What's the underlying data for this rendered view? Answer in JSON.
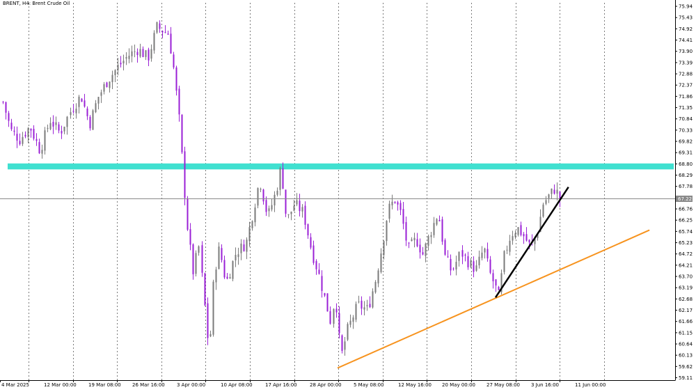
{
  "symbol_title": "BRENT, H4:  Brent Crude Oil",
  "colors": {
    "background": "#ffffff",
    "axis": "#000000",
    "grid": "#7a7a7a",
    "bull": "#7a7a7a",
    "bear": "#9a1fd6",
    "resistance_zone": "#40e0d0",
    "support_line": "#f7931e",
    "short_trend_line": "#000000",
    "price_line": "#888888",
    "price_tag_bg": "#888888",
    "price_tag_text": "#ffffff"
  },
  "chart_data": {
    "type": "candlestick",
    "title": "BRENT, H4:  Brent Crude Oil",
    "timeframe": "H4",
    "ylim": [
      59.0,
      76.1
    ],
    "y_ticks": [
      "75.94",
      "75.43",
      "74.92",
      "74.41",
      "73.90",
      "73.39",
      "72.88",
      "72.37",
      "71.86",
      "71.35",
      "70.84",
      "70.33",
      "69.82",
      "69.31",
      "68.80",
      "68.29",
      "67.78",
      "67.27",
      "66.76",
      "66.25",
      "65.74",
      "65.23",
      "64.72",
      "64.21",
      "63.70",
      "63.19",
      "62.68",
      "62.17",
      "61.66",
      "61.15",
      "60.64",
      "60.13",
      "59.62",
      "59.11"
    ],
    "x_ticks": [
      "4 Mar 2025",
      "12 Mar 00:00",
      "19 Mar 08:00",
      "26 Mar 16:00",
      "3 Apr 00:00",
      "10 Apr 08:00",
      "17 Apr 16:00",
      "28 Apr 00:00",
      "5 May 08:00",
      "12 May 16:00",
      "20 May 00:00",
      "27 May 08:00",
      "3 Jun 16:00",
      "11 Jun 00:00"
    ],
    "current_price": "67.22",
    "resistance_zone": {
      "low": 68.55,
      "high": 68.82
    },
    "support_line": {
      "from": {
        "bar_index": 0.5,
        "price": 59.55
      },
      "to": {
        "bar_index": 0.962,
        "price": 65.8
      }
    },
    "short_trend_line": {
      "from": {
        "bar_index": 0.734,
        "price": 62.75
      },
      "to": {
        "bar_index": 0.842,
        "price": 67.75
      }
    },
    "close_path": [
      [
        0.0,
        71.6
      ],
      [
        0.012,
        70.3
      ],
      [
        0.025,
        69.9
      ],
      [
        0.04,
        70.5
      ],
      [
        0.055,
        69.4
      ],
      [
        0.07,
        70.8
      ],
      [
        0.085,
        70.2
      ],
      [
        0.1,
        71.2
      ],
      [
        0.115,
        71.9
      ],
      [
        0.128,
        70.6
      ],
      [
        0.14,
        71.8
      ],
      [
        0.155,
        72.6
      ],
      [
        0.17,
        73.2
      ],
      [
        0.185,
        73.7
      ],
      [
        0.2,
        74.0
      ],
      [
        0.215,
        73.6
      ],
      [
        0.228,
        75.0
      ],
      [
        0.245,
        74.7
      ],
      [
        0.252,
        73.4
      ],
      [
        0.262,
        70.6
      ],
      [
        0.268,
        68.0
      ],
      [
        0.274,
        65.8
      ],
      [
        0.282,
        63.9
      ],
      [
        0.29,
        65.1
      ],
      [
        0.298,
        62.5
      ],
      [
        0.305,
        60.2
      ],
      [
        0.312,
        63.8
      ],
      [
        0.32,
        65.0
      ],
      [
        0.33,
        63.4
      ],
      [
        0.345,
        64.8
      ],
      [
        0.36,
        65.2
      ],
      [
        0.372,
        66.9
      ],
      [
        0.38,
        68.1
      ],
      [
        0.392,
        66.4
      ],
      [
        0.405,
        67.6
      ],
      [
        0.412,
        68.7
      ],
      [
        0.42,
        66.2
      ],
      [
        0.432,
        67.0
      ],
      [
        0.445,
        66.6
      ],
      [
        0.458,
        64.8
      ],
      [
        0.468,
        63.8
      ],
      [
        0.478,
        62.6
      ],
      [
        0.485,
        61.7
      ],
      [
        0.492,
        62.8
      ],
      [
        0.5,
        60.0
      ],
      [
        0.51,
        61.3
      ],
      [
        0.525,
        62.4
      ],
      [
        0.54,
        62.2
      ],
      [
        0.552,
        63.6
      ],
      [
        0.562,
        65.2
      ],
      [
        0.57,
        66.7
      ],
      [
        0.58,
        67.2
      ],
      [
        0.59,
        66.5
      ],
      [
        0.6,
        64.9
      ],
      [
        0.612,
        65.4
      ],
      [
        0.622,
        64.7
      ],
      [
        0.632,
        65.6
      ],
      [
        0.645,
        66.6
      ],
      [
        0.655,
        64.6
      ],
      [
        0.665,
        63.9
      ],
      [
        0.678,
        64.8
      ],
      [
        0.69,
        64.3
      ],
      [
        0.7,
        64.0
      ],
      [
        0.712,
        65.0
      ],
      [
        0.72,
        63.9
      ],
      [
        0.728,
        63.3
      ],
      [
        0.734,
        62.8
      ],
      [
        0.742,
        64.6
      ],
      [
        0.752,
        65.6
      ],
      [
        0.762,
        65.9
      ],
      [
        0.772,
        65.5
      ],
      [
        0.782,
        65.0
      ],
      [
        0.792,
        65.8
      ],
      [
        0.8,
        67.0
      ],
      [
        0.81,
        67.4
      ],
      [
        0.818,
        67.7
      ],
      [
        0.825,
        67.2
      ]
    ]
  }
}
